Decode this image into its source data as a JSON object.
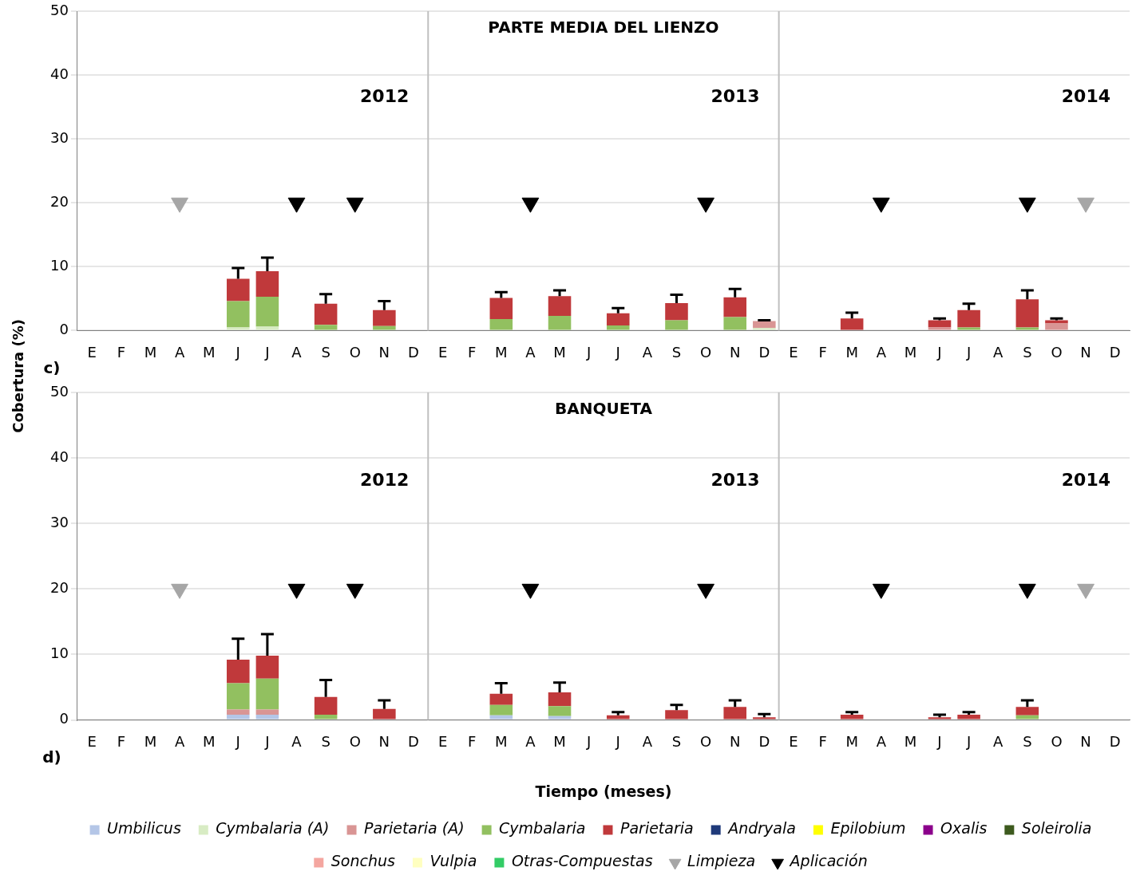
{
  "chart_data": [
    {
      "type": "bar",
      "title": "PARTE MEDIA DEL LIENZO",
      "ylabel": "Cobertura (%)",
      "stacked": true,
      "grid": "y",
      "legend": false,
      "marker": "triangle",
      "categories": [
        "E",
        "F",
        "M",
        "A",
        "M",
        "J",
        "J",
        "A",
        "S",
        "O",
        "N",
        "D",
        "E",
        "F",
        "M",
        "A",
        "M",
        "J",
        "J",
        "A",
        "S",
        "O",
        "N",
        "D",
        "E",
        "F",
        "M",
        "A",
        "M",
        "J",
        "J",
        "A",
        "S",
        "O",
        "N",
        "D"
      ],
      "ylim": [
        0,
        50
      ],
      "yticks": [
        0,
        10,
        20,
        30,
        40,
        50
      ],
      "annotations": [
        "2012",
        "2013",
        "2014",
        "c)"
      ],
      "series": [
        {
          "color": "#d8ecc4",
          "values": [
            null,
            null,
            null,
            null,
            null,
            0.5,
            0.6,
            null,
            null,
            null,
            null,
            null,
            null,
            null,
            null,
            null,
            null,
            null,
            null,
            null,
            null,
            null,
            null,
            0.4,
            null,
            null,
            null,
            null,
            null,
            null,
            null,
            null,
            null,
            null,
            null,
            null
          ]
        },
        {
          "color": "#d99594",
          "values": [
            null,
            null,
            null,
            null,
            null,
            null,
            null,
            null,
            null,
            null,
            null,
            null,
            null,
            null,
            null,
            null,
            null,
            null,
            null,
            null,
            null,
            null,
            null,
            1.1,
            null,
            null,
            null,
            null,
            null,
            0.5,
            null,
            null,
            null,
            1.1,
            null,
            null
          ],
          "errors": [
            null,
            null,
            null,
            null,
            null,
            null,
            null,
            null,
            null,
            null,
            null,
            null,
            null,
            null,
            null,
            null,
            null,
            null,
            null,
            null,
            null,
            null,
            null,
            0.1,
            null,
            null,
            null,
            null,
            null,
            null,
            null,
            null,
            null,
            null,
            null,
            null
          ]
        },
        {
          "color": "#92c060",
          "values": [
            null,
            null,
            null,
            null,
            null,
            4.1,
            4.7,
            null,
            0.9,
            null,
            0.7,
            null,
            null,
            null,
            1.8,
            null,
            2.3,
            null,
            0.8,
            null,
            1.6,
            null,
            2.1,
            null,
            null,
            null,
            null,
            null,
            null,
            null,
            0.5,
            null,
            0.5,
            null,
            null,
            null
          ]
        },
        {
          "color": "#c0393b",
          "values": [
            null,
            null,
            null,
            null,
            null,
            3.5,
            4.0,
            null,
            3.3,
            null,
            2.5,
            null,
            null,
            null,
            3.3,
            null,
            3.1,
            null,
            1.9,
            null,
            2.7,
            null,
            3.1,
            null,
            null,
            null,
            1.9,
            null,
            null,
            1.1,
            2.7,
            null,
            4.4,
            0.5,
            null,
            null
          ],
          "errors": [
            null,
            null,
            null,
            null,
            null,
            1.7,
            2.1,
            null,
            1.5,
            null,
            1.4,
            null,
            null,
            null,
            0.9,
            null,
            0.9,
            null,
            0.8,
            null,
            1.3,
            null,
            1.3,
            null,
            null,
            null,
            0.9,
            null,
            null,
            0.3,
            1.0,
            null,
            1.4,
            0.3,
            null,
            null
          ]
        },
        {
          "type": "scatter",
          "color": "#a6a6a6",
          "values": [
            null,
            null,
            null,
            20,
            null,
            null,
            null,
            null,
            null,
            null,
            null,
            null,
            null,
            null,
            null,
            null,
            null,
            null,
            null,
            null,
            null,
            null,
            null,
            null,
            null,
            null,
            null,
            null,
            null,
            null,
            null,
            null,
            null,
            null,
            20,
            null
          ]
        },
        {
          "type": "scatter",
          "color": "#000000",
          "values": [
            null,
            null,
            null,
            null,
            null,
            null,
            null,
            20,
            null,
            20,
            null,
            null,
            null,
            null,
            null,
            20,
            null,
            null,
            null,
            null,
            null,
            20,
            null,
            null,
            null,
            null,
            null,
            20,
            null,
            null,
            null,
            null,
            20,
            null,
            null,
            null
          ]
        }
      ]
    },
    {
      "type": "bar",
      "title": "BANQUETA",
      "xlabel": "Tiempo (meses)",
      "stacked": true,
      "grid": "y",
      "legend": "bottom",
      "marker": "triangle",
      "categories": [
        "E",
        "F",
        "M",
        "A",
        "M",
        "J",
        "J",
        "A",
        "S",
        "O",
        "N",
        "D",
        "E",
        "F",
        "M",
        "A",
        "M",
        "J",
        "J",
        "A",
        "S",
        "O",
        "N",
        "D",
        "E",
        "F",
        "M",
        "A",
        "M",
        "J",
        "J",
        "A",
        "S",
        "O",
        "N",
        "D"
      ],
      "ylim": [
        0,
        50
      ],
      "yticks": [
        0,
        10,
        20,
        30,
        40,
        50
      ],
      "annotations": [
        "2012",
        "2013",
        "2014",
        "d)"
      ],
      "series": [
        {
          "name": "Umbilicus",
          "color": "#b4c6e7",
          "values": [
            null,
            null,
            null,
            null,
            null,
            0.8,
            0.8,
            null,
            null,
            null,
            null,
            null,
            null,
            null,
            0.7,
            null,
            0.6,
            null,
            null,
            null,
            null,
            null,
            null,
            null,
            null,
            null,
            null,
            null,
            null,
            null,
            null,
            null,
            null,
            null,
            null,
            null
          ]
        },
        {
          "name": "Cymbalaria (A)",
          "color": "#d8ecc4",
          "values": [
            null,
            null,
            null,
            null,
            null,
            null,
            null,
            null,
            null,
            null,
            null,
            null,
            null,
            null,
            null,
            null,
            null,
            null,
            null,
            null,
            null,
            null,
            null,
            null,
            null,
            null,
            null,
            null,
            null,
            null,
            null,
            null,
            null,
            null,
            null,
            null
          ]
        },
        {
          "name": "Parietaria (A)",
          "color": "#d99594",
          "values": [
            null,
            null,
            null,
            null,
            null,
            0.8,
            0.8,
            null,
            null,
            null,
            null,
            null,
            null,
            null,
            null,
            null,
            null,
            null,
            null,
            null,
            null,
            null,
            null,
            null,
            null,
            null,
            null,
            null,
            null,
            null,
            null,
            null,
            null,
            null,
            null,
            null
          ]
        },
        {
          "name": "Cymbalaria",
          "color": "#92c060",
          "values": [
            null,
            null,
            null,
            null,
            null,
            4.0,
            4.7,
            null,
            0.8,
            null,
            null,
            null,
            null,
            null,
            1.6,
            null,
            1.5,
            null,
            null,
            null,
            null,
            null,
            null,
            null,
            null,
            null,
            null,
            null,
            null,
            null,
            null,
            null,
            0.7,
            null,
            null,
            null
          ]
        },
        {
          "name": "Parietaria",
          "color": "#c0393b",
          "values": [
            null,
            null,
            null,
            null,
            null,
            3.6,
            3.5,
            null,
            2.7,
            null,
            1.7,
            null,
            null,
            null,
            1.7,
            null,
            2.1,
            null,
            0.7,
            null,
            1.5,
            null,
            2.0,
            0.4,
            null,
            null,
            0.8,
            null,
            null,
            0.4,
            0.8,
            null,
            1.3,
            null,
            null,
            null
          ],
          "errors": [
            null,
            null,
            null,
            null,
            null,
            3.2,
            3.3,
            null,
            2.6,
            null,
            1.3,
            null,
            null,
            null,
            1.6,
            null,
            1.5,
            null,
            0.5,
            null,
            0.8,
            null,
            1.0,
            0.5,
            null,
            null,
            0.4,
            null,
            null,
            0.4,
            0.4,
            null,
            1.0,
            null,
            null,
            null
          ]
        },
        {
          "name": "Andryala",
          "color": "#1f3a7a",
          "values": [
            null,
            null,
            null,
            null,
            null,
            null,
            null,
            null,
            null,
            null,
            null,
            null,
            null,
            null,
            null,
            null,
            null,
            null,
            null,
            null,
            null,
            null,
            null,
            null,
            null,
            null,
            null,
            null,
            null,
            null,
            null,
            null,
            null,
            null,
            null,
            null
          ]
        },
        {
          "name": "Epilobium",
          "color": "#ffff00",
          "values": [
            null,
            null,
            null,
            null,
            null,
            null,
            null,
            null,
            null,
            null,
            null,
            null,
            null,
            null,
            null,
            null,
            null,
            null,
            null,
            null,
            null,
            null,
            null,
            null,
            null,
            null,
            null,
            null,
            null,
            null,
            null,
            null,
            null,
            null,
            null,
            null
          ]
        },
        {
          "name": "Oxalis",
          "color": "#8b008b",
          "values": [
            null,
            null,
            null,
            null,
            null,
            null,
            null,
            null,
            null,
            null,
            null,
            null,
            null,
            null,
            null,
            null,
            null,
            null,
            null,
            null,
            null,
            null,
            null,
            null,
            null,
            null,
            null,
            null,
            null,
            null,
            null,
            null,
            null,
            null,
            null,
            null
          ]
        },
        {
          "name": "Soleirolia",
          "color": "#3d5a1e",
          "values": [
            null,
            null,
            null,
            null,
            null,
            null,
            null,
            null,
            null,
            null,
            null,
            null,
            null,
            null,
            null,
            null,
            null,
            null,
            null,
            null,
            null,
            null,
            null,
            null,
            null,
            null,
            null,
            null,
            null,
            null,
            null,
            null,
            null,
            null,
            null,
            null
          ]
        },
        {
          "name": "Sonchus",
          "color": "#f4a6a0",
          "values": [
            null,
            null,
            null,
            null,
            null,
            null,
            null,
            null,
            null,
            null,
            null,
            null,
            null,
            null,
            null,
            null,
            null,
            null,
            null,
            null,
            null,
            null,
            null,
            null,
            null,
            null,
            null,
            null,
            null,
            null,
            null,
            null,
            null,
            null,
            null,
            null
          ]
        },
        {
          "name": "Vulpia",
          "color": "#ffffc0",
          "values": [
            null,
            null,
            null,
            null,
            null,
            null,
            null,
            null,
            null,
            null,
            null,
            null,
            null,
            null,
            null,
            null,
            null,
            null,
            null,
            null,
            null,
            null,
            null,
            null,
            null,
            null,
            null,
            null,
            null,
            null,
            null,
            null,
            null,
            null,
            null,
            null
          ]
        },
        {
          "name": "Otras-Compuestas",
          "color": "#33cc66",
          "values": [
            null,
            null,
            null,
            null,
            null,
            null,
            null,
            null,
            null,
            null,
            null,
            null,
            null,
            null,
            null,
            null,
            null,
            null,
            null,
            null,
            null,
            null,
            null,
            null,
            null,
            null,
            null,
            null,
            null,
            null,
            null,
            null,
            null,
            null,
            null,
            null
          ]
        },
        {
          "name": "Limpieza",
          "type": "scatter",
          "color": "#a6a6a6",
          "values": [
            null,
            null,
            null,
            20,
            null,
            null,
            null,
            null,
            null,
            null,
            null,
            null,
            null,
            null,
            null,
            null,
            null,
            null,
            null,
            null,
            null,
            null,
            null,
            null,
            null,
            null,
            null,
            null,
            null,
            null,
            null,
            null,
            null,
            null,
            20,
            null
          ]
        },
        {
          "name": "Aplicación",
          "type": "scatter",
          "color": "#000000",
          "values": [
            null,
            null,
            null,
            null,
            null,
            null,
            null,
            20,
            null,
            20,
            null,
            null,
            null,
            null,
            null,
            20,
            null,
            null,
            null,
            null,
            null,
            20,
            null,
            null,
            null,
            null,
            null,
            20,
            null,
            null,
            null,
            null,
            20,
            null,
            null,
            null
          ]
        }
      ]
    }
  ]
}
